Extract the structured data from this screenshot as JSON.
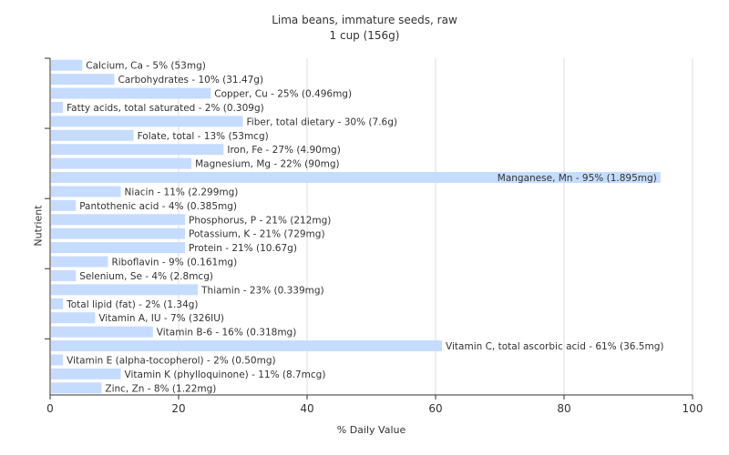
{
  "chart_data": {
    "type": "bar",
    "orientation": "horizontal",
    "title": "Lima beans, immature seeds, raw",
    "subtitle": "1 cup (156g)",
    "xlabel": "% Daily Value",
    "ylabel": "Nutrient",
    "xlim": [
      0,
      100
    ],
    "xticks": [
      "0",
      "20",
      "40",
      "60",
      "80",
      "100"
    ],
    "grid": true,
    "colors": {
      "bar": "#c6dcff",
      "grid": "#dddddd",
      "axis": "#333333",
      "text": "#333333"
    },
    "categories": [
      "Calcium, Ca",
      "Carbohydrates",
      "Copper, Cu",
      "Fatty acids, total saturated",
      "Fiber, total dietary",
      "Folate, total",
      "Iron, Fe",
      "Magnesium, Mg",
      "Manganese, Mn",
      "Niacin",
      "Pantothenic acid",
      "Phosphorus, P",
      "Potassium, K",
      "Protein",
      "Riboflavin",
      "Selenium, Se",
      "Thiamin",
      "Total lipid (fat)",
      "Vitamin A, IU",
      "Vitamin B-6",
      "Vitamin C, total ascorbic acid",
      "Vitamin E (alpha-tocopherol)",
      "Vitamin K (phylloquinone)",
      "Zinc, Zn"
    ],
    "values": [
      5,
      10,
      25,
      2,
      30,
      13,
      27,
      22,
      95,
      11,
      4,
      21,
      21,
      21,
      9,
      4,
      23,
      2,
      7,
      16,
      61,
      2,
      11,
      8
    ],
    "labels": [
      "Calcium, Ca - 5% (53mg)",
      "Carbohydrates - 10% (31.47g)",
      "Copper, Cu - 25% (0.496mg)",
      "Fatty acids, total saturated - 2% (0.309g)",
      "Fiber, total dietary - 30% (7.6g)",
      "Folate, total - 13% (53mcg)",
      "Iron, Fe - 27% (4.90mg)",
      "Magnesium, Mg - 22% (90mg)",
      "Manganese, Mn - 95% (1.895mg)",
      "Niacin - 11% (2.299mg)",
      "Pantothenic acid - 4% (0.385mg)",
      "Phosphorus, P - 21% (212mg)",
      "Potassium, K - 21% (729mg)",
      "Protein - 21% (10.67g)",
      "Riboflavin - 9% (0.161mg)",
      "Selenium, Se - 4% (2.8mcg)",
      "Thiamin - 23% (0.339mg)",
      "Total lipid (fat) - 2% (1.34g)",
      "Vitamin A, IU - 7% (326IU)",
      "Vitamin B-6 - 16% (0.318mg)",
      "Vitamin C, total ascorbic acid - 61% (36.5mg)",
      "Vitamin E (alpha-tocopherol) - 2% (0.50mg)",
      "Vitamin K (phylloquinone) - 11% (8.7mcg)",
      "Zinc, Zn - 8% (1.22mg)"
    ]
  }
}
